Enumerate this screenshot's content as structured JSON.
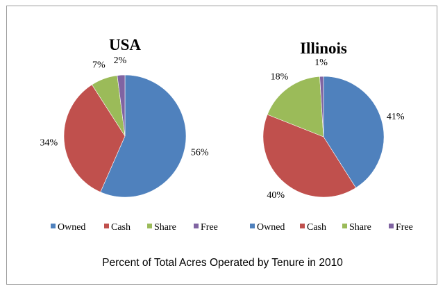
{
  "caption": "Percent of Total Acres Operated by Tenure in 2010",
  "chart_data": [
    {
      "type": "pie",
      "title": "USA",
      "categories": [
        "Owned",
        "Cash",
        "Share",
        "Free"
      ],
      "values": [
        56,
        34,
        7,
        2
      ],
      "labels": [
        "56%",
        "34%",
        "7%",
        "2%"
      ],
      "colors": [
        "#4f81bd",
        "#c0504d",
        "#9bbb59",
        "#8064a2"
      ],
      "legend": "bottom"
    },
    {
      "type": "pie",
      "title": "Illinois",
      "categories": [
        "Owned",
        "Cash",
        "Share",
        "Free"
      ],
      "values": [
        41,
        40,
        18,
        1
      ],
      "labels": [
        "41%",
        "40%",
        "18%",
        "1%"
      ],
      "colors": [
        "#4f81bd",
        "#c0504d",
        "#9bbb59",
        "#8064a2"
      ],
      "legend": "bottom"
    }
  ]
}
